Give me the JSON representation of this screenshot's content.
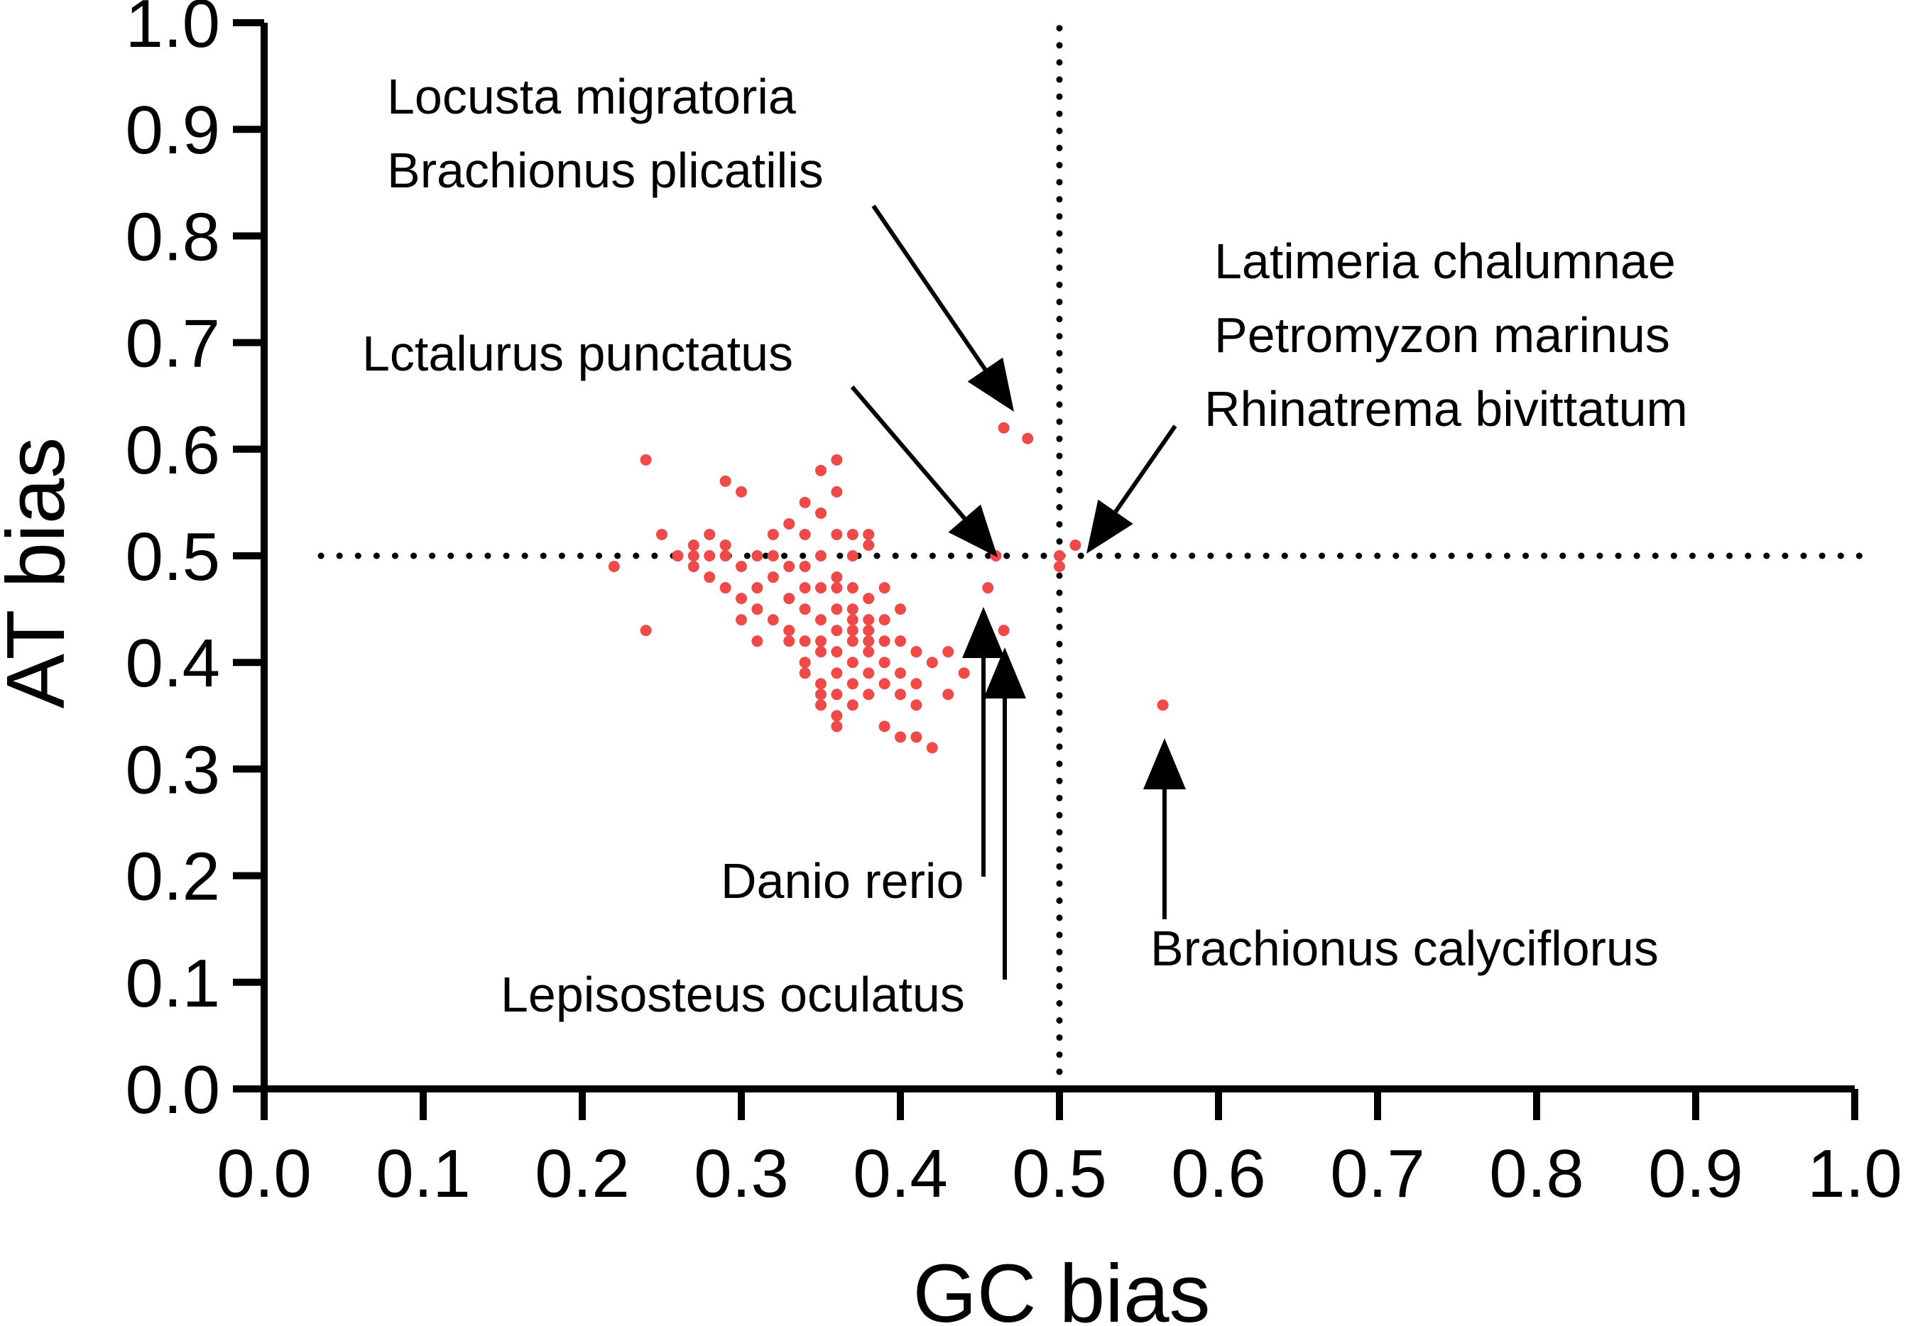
{
  "chart_data": {
    "type": "scatter",
    "title": "",
    "xlabel": "GC bias",
    "ylabel": "AT bias",
    "xlim": [
      0,
      1
    ],
    "ylim": [
      0,
      1
    ],
    "xticks": [
      "0.0",
      "0.1",
      "0.2",
      "0.3",
      "0.4",
      "0.5",
      "0.6",
      "0.7",
      "0.8",
      "0.9",
      "1.0"
    ],
    "yticks": [
      "0.0",
      "0.1",
      "0.2",
      "0.3",
      "0.4",
      "0.5",
      "0.6",
      "0.7",
      "0.8",
      "0.9",
      "1.0"
    ],
    "grid": false,
    "reference_lines": {
      "x": 0.5,
      "y": 0.5,
      "style": "dotted"
    },
    "point_color": "#ef4a4a",
    "points": [
      [
        0.22,
        0.49
      ],
      [
        0.24,
        0.59
      ],
      [
        0.24,
        0.43
      ],
      [
        0.25,
        0.52
      ],
      [
        0.26,
        0.5
      ],
      [
        0.26,
        0.5
      ],
      [
        0.27,
        0.5
      ],
      [
        0.27,
        0.51
      ],
      [
        0.27,
        0.49
      ],
      [
        0.28,
        0.52
      ],
      [
        0.28,
        0.5
      ],
      [
        0.28,
        0.48
      ],
      [
        0.29,
        0.57
      ],
      [
        0.29,
        0.51
      ],
      [
        0.29,
        0.5
      ],
      [
        0.29,
        0.47
      ],
      [
        0.3,
        0.56
      ],
      [
        0.3,
        0.49
      ],
      [
        0.3,
        0.46
      ],
      [
        0.31,
        0.5
      ],
      [
        0.31,
        0.45
      ],
      [
        0.31,
        0.42
      ],
      [
        0.32,
        0.52
      ],
      [
        0.32,
        0.5
      ],
      [
        0.32,
        0.48
      ],
      [
        0.32,
        0.44
      ],
      [
        0.33,
        0.53
      ],
      [
        0.33,
        0.49
      ],
      [
        0.33,
        0.46
      ],
      [
        0.33,
        0.43
      ],
      [
        0.34,
        0.55
      ],
      [
        0.34,
        0.52
      ],
      [
        0.34,
        0.49
      ],
      [
        0.34,
        0.45
      ],
      [
        0.34,
        0.42
      ],
      [
        0.34,
        0.4
      ],
      [
        0.35,
        0.58
      ],
      [
        0.35,
        0.54
      ],
      [
        0.35,
        0.5
      ],
      [
        0.35,
        0.47
      ],
      [
        0.35,
        0.44
      ],
      [
        0.35,
        0.41
      ],
      [
        0.35,
        0.38
      ],
      [
        0.35,
        0.36
      ],
      [
        0.36,
        0.59
      ],
      [
        0.36,
        0.56
      ],
      [
        0.36,
        0.52
      ],
      [
        0.36,
        0.48
      ],
      [
        0.36,
        0.45
      ],
      [
        0.36,
        0.43
      ],
      [
        0.36,
        0.41
      ],
      [
        0.36,
        0.39
      ],
      [
        0.36,
        0.37
      ],
      [
        0.36,
        0.34
      ],
      [
        0.37,
        0.5
      ],
      [
        0.37,
        0.47
      ],
      [
        0.37,
        0.45
      ],
      [
        0.37,
        0.43
      ],
      [
        0.37,
        0.42
      ],
      [
        0.37,
        0.4
      ],
      [
        0.37,
        0.38
      ],
      [
        0.37,
        0.36
      ],
      [
        0.38,
        0.51
      ],
      [
        0.38,
        0.46
      ],
      [
        0.38,
        0.44
      ],
      [
        0.38,
        0.42
      ],
      [
        0.38,
        0.41
      ],
      [
        0.38,
        0.39
      ],
      [
        0.38,
        0.37
      ],
      [
        0.39,
        0.47
      ],
      [
        0.39,
        0.44
      ],
      [
        0.39,
        0.42
      ],
      [
        0.39,
        0.4
      ],
      [
        0.39,
        0.38
      ],
      [
        0.39,
        0.34
      ],
      [
        0.4,
        0.45
      ],
      [
        0.4,
        0.42
      ],
      [
        0.4,
        0.39
      ],
      [
        0.4,
        0.33
      ],
      [
        0.41,
        0.41
      ],
      [
        0.41,
        0.38
      ],
      [
        0.41,
        0.36
      ],
      [
        0.42,
        0.4
      ],
      [
        0.42,
        0.32
      ],
      [
        0.43,
        0.37
      ],
      [
        0.43,
        0.41
      ],
      [
        0.44,
        0.39
      ],
      [
        0.37,
        0.52
      ],
      [
        0.38,
        0.52
      ],
      [
        0.33,
        0.42
      ],
      [
        0.3,
        0.44
      ],
      [
        0.31,
        0.47
      ],
      [
        0.34,
        0.47
      ],
      [
        0.36,
        0.47
      ],
      [
        0.35,
        0.42
      ],
      [
        0.37,
        0.44
      ],
      [
        0.38,
        0.43
      ],
      [
        0.4,
        0.37
      ],
      [
        0.41,
        0.33
      ],
      [
        0.36,
        0.35
      ],
      [
        0.35,
        0.37
      ],
      [
        0.34,
        0.39
      ],
      [
        0.455,
        0.47
      ],
      [
        0.46,
        0.5
      ],
      [
        0.465,
        0.43
      ],
      [
        0.465,
        0.62
      ],
      [
        0.48,
        0.61
      ],
      [
        0.5,
        0.5
      ],
      [
        0.5,
        0.49
      ],
      [
        0.51,
        0.51
      ],
      [
        0.565,
        0.36
      ]
    ],
    "annotations": [
      {
        "lines": [
          "Locusta migratoria",
          "Brachionus plicatilis"
        ]
      },
      {
        "lines": [
          "Lctalurus punctatus"
        ]
      },
      {
        "lines": [
          "Latimeria chalumnae",
          "Petromyzon marinus",
          "Rhinatrema bivittatum"
        ]
      },
      {
        "lines": [
          "Danio rerio"
        ]
      },
      {
        "lines": [
          "Lepisosteus oculatus"
        ]
      },
      {
        "lines": [
          "Brachionus calyciflorus"
        ]
      }
    ]
  }
}
